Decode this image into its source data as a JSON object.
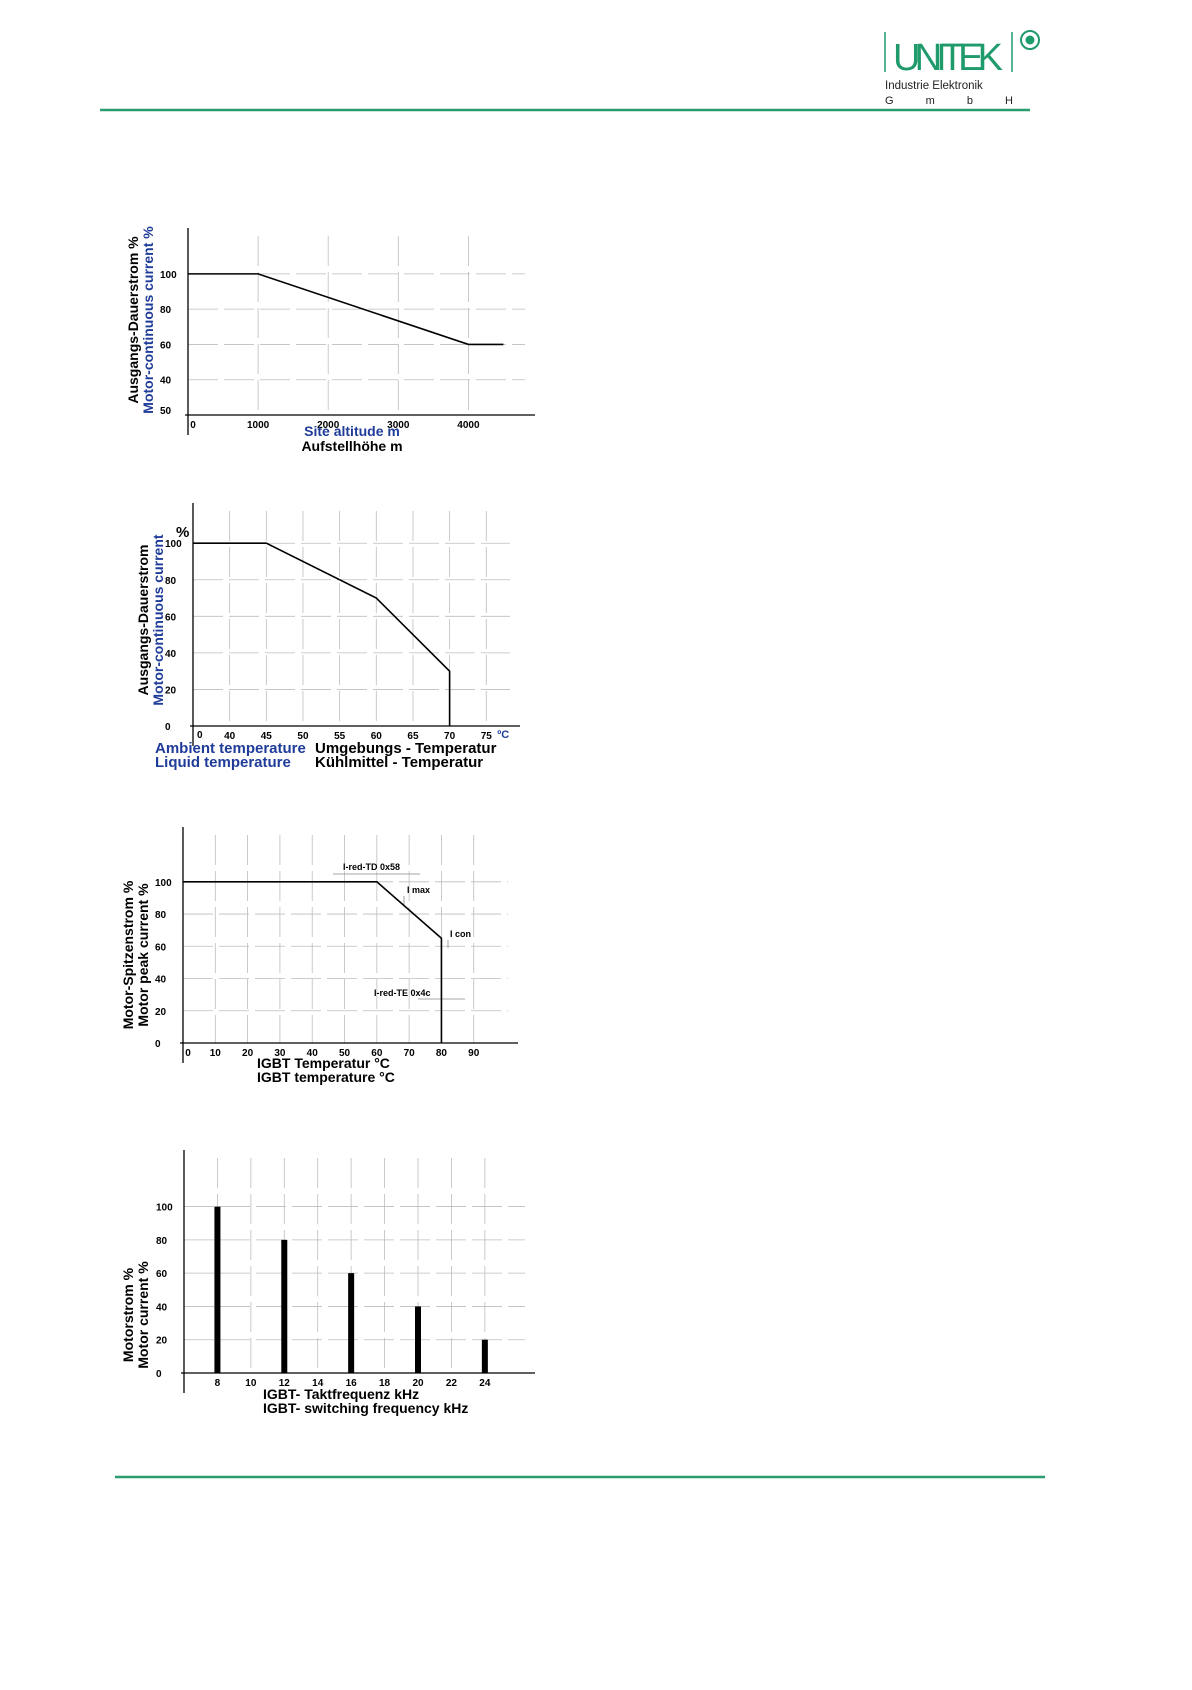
{
  "header": {
    "brand": "UNITEK",
    "subtitle": "Industrie Elektronik",
    "company_form": "G m b H"
  },
  "chart_data": [
    {
      "type": "line",
      "color": "#000000",
      "grid": true,
      "ylabel": [
        "Ausgangs-Dauerstrom  %",
        "Motor-continuous current %"
      ],
      "ylabel_colors": [
        "#000000",
        "#1f3c99"
      ],
      "xlabel": [
        "Site altitude m",
        "Aufstellhöhe m"
      ],
      "xlabel_colors": [
        "#1f3c99",
        "#000000"
      ],
      "corner_label": "50",
      "xlim": [
        0,
        4950
      ],
      "xticks": [
        0,
        1000,
        2000,
        3000,
        4000
      ],
      "ylim": [
        20,
        126
      ],
      "yticks": [
        40,
        60,
        80,
        100
      ],
      "x": [
        0,
        1000,
        4000,
        4500
      ],
      "values": [
        100,
        100,
        60,
        60
      ]
    },
    {
      "type": "line",
      "color": "#000000",
      "grid": true,
      "ylabel": [
        "Ausgangs-Dauerstrom",
        "Motor-continuous current"
      ],
      "ylabel_colors": [
        "#000000",
        "#1f3c99"
      ],
      "xlabel_left": [
        "Ambient temperature",
        "Liquid temperature"
      ],
      "xlabel_left_color": "#1f3c99",
      "xlabel_right": [
        "Umgebungs - Temperatur",
        "Kühlmittel - Temperatur"
      ],
      "xlabel_right_color": "#000000",
      "y_unit": "%",
      "x_unit": "ºC",
      "x_unit_color": "#1f3c99",
      "origin_label": "0",
      "xlim": [
        35,
        79.6
      ],
      "xticks": [
        40,
        45,
        50,
        55,
        60,
        65,
        70,
        75
      ],
      "ylim": [
        0,
        122
      ],
      "yticks": [
        0,
        20,
        40,
        60,
        80,
        100
      ],
      "x": [
        35,
        45,
        60,
        70,
        70
      ],
      "values": [
        100,
        100,
        70,
        30,
        0
      ]
    },
    {
      "type": "line",
      "color": "#000000",
      "grid": true,
      "ylabel": [
        "Motor-Spitzenstrom %",
        "Motor peak current %"
      ],
      "ylabel_colors": [
        "#000000",
        "#000000"
      ],
      "xlabel": [
        "IGBT Temperatur  °C",
        "IGBT temperature °C"
      ],
      "xlabel_colors": [
        "#000000",
        "#000000"
      ],
      "annotations": [
        "I-red-TD  0x58",
        "I max",
        "I con",
        "I-red-TE  0x4c"
      ],
      "xlim": [
        0,
        103.7
      ],
      "xticks": [
        0,
        10,
        20,
        30,
        40,
        50,
        60,
        70,
        80,
        90
      ],
      "ylim": [
        0,
        134
      ],
      "yticks": [
        0,
        20,
        40,
        60,
        80,
        100
      ],
      "x": [
        0,
        60,
        80,
        80
      ],
      "values": [
        100,
        100,
        65,
        0
      ]
    },
    {
      "type": "bar",
      "color": "#000000",
      "grid": true,
      "ylabel": [
        "Motorstrom %",
        "Motor current %"
      ],
      "ylabel_colors": [
        "#000000",
        "#000000"
      ],
      "xlabel": [
        "IGBT- Taktfrequenz  kHz",
        "IGBT- switching frequency  kHz"
      ],
      "xlabel_colors": [
        "#000000",
        "#000000"
      ],
      "xlim": [
        6,
        27
      ],
      "xticks": [
        8,
        10,
        12,
        14,
        16,
        18,
        20,
        22,
        24
      ],
      "ylim": [
        0,
        134
      ],
      "yticks": [
        0,
        20,
        40,
        60,
        80,
        100
      ],
      "x": [
        8,
        12,
        16,
        20,
        24
      ],
      "values": [
        100,
        80,
        60,
        40,
        20
      ]
    }
  ]
}
